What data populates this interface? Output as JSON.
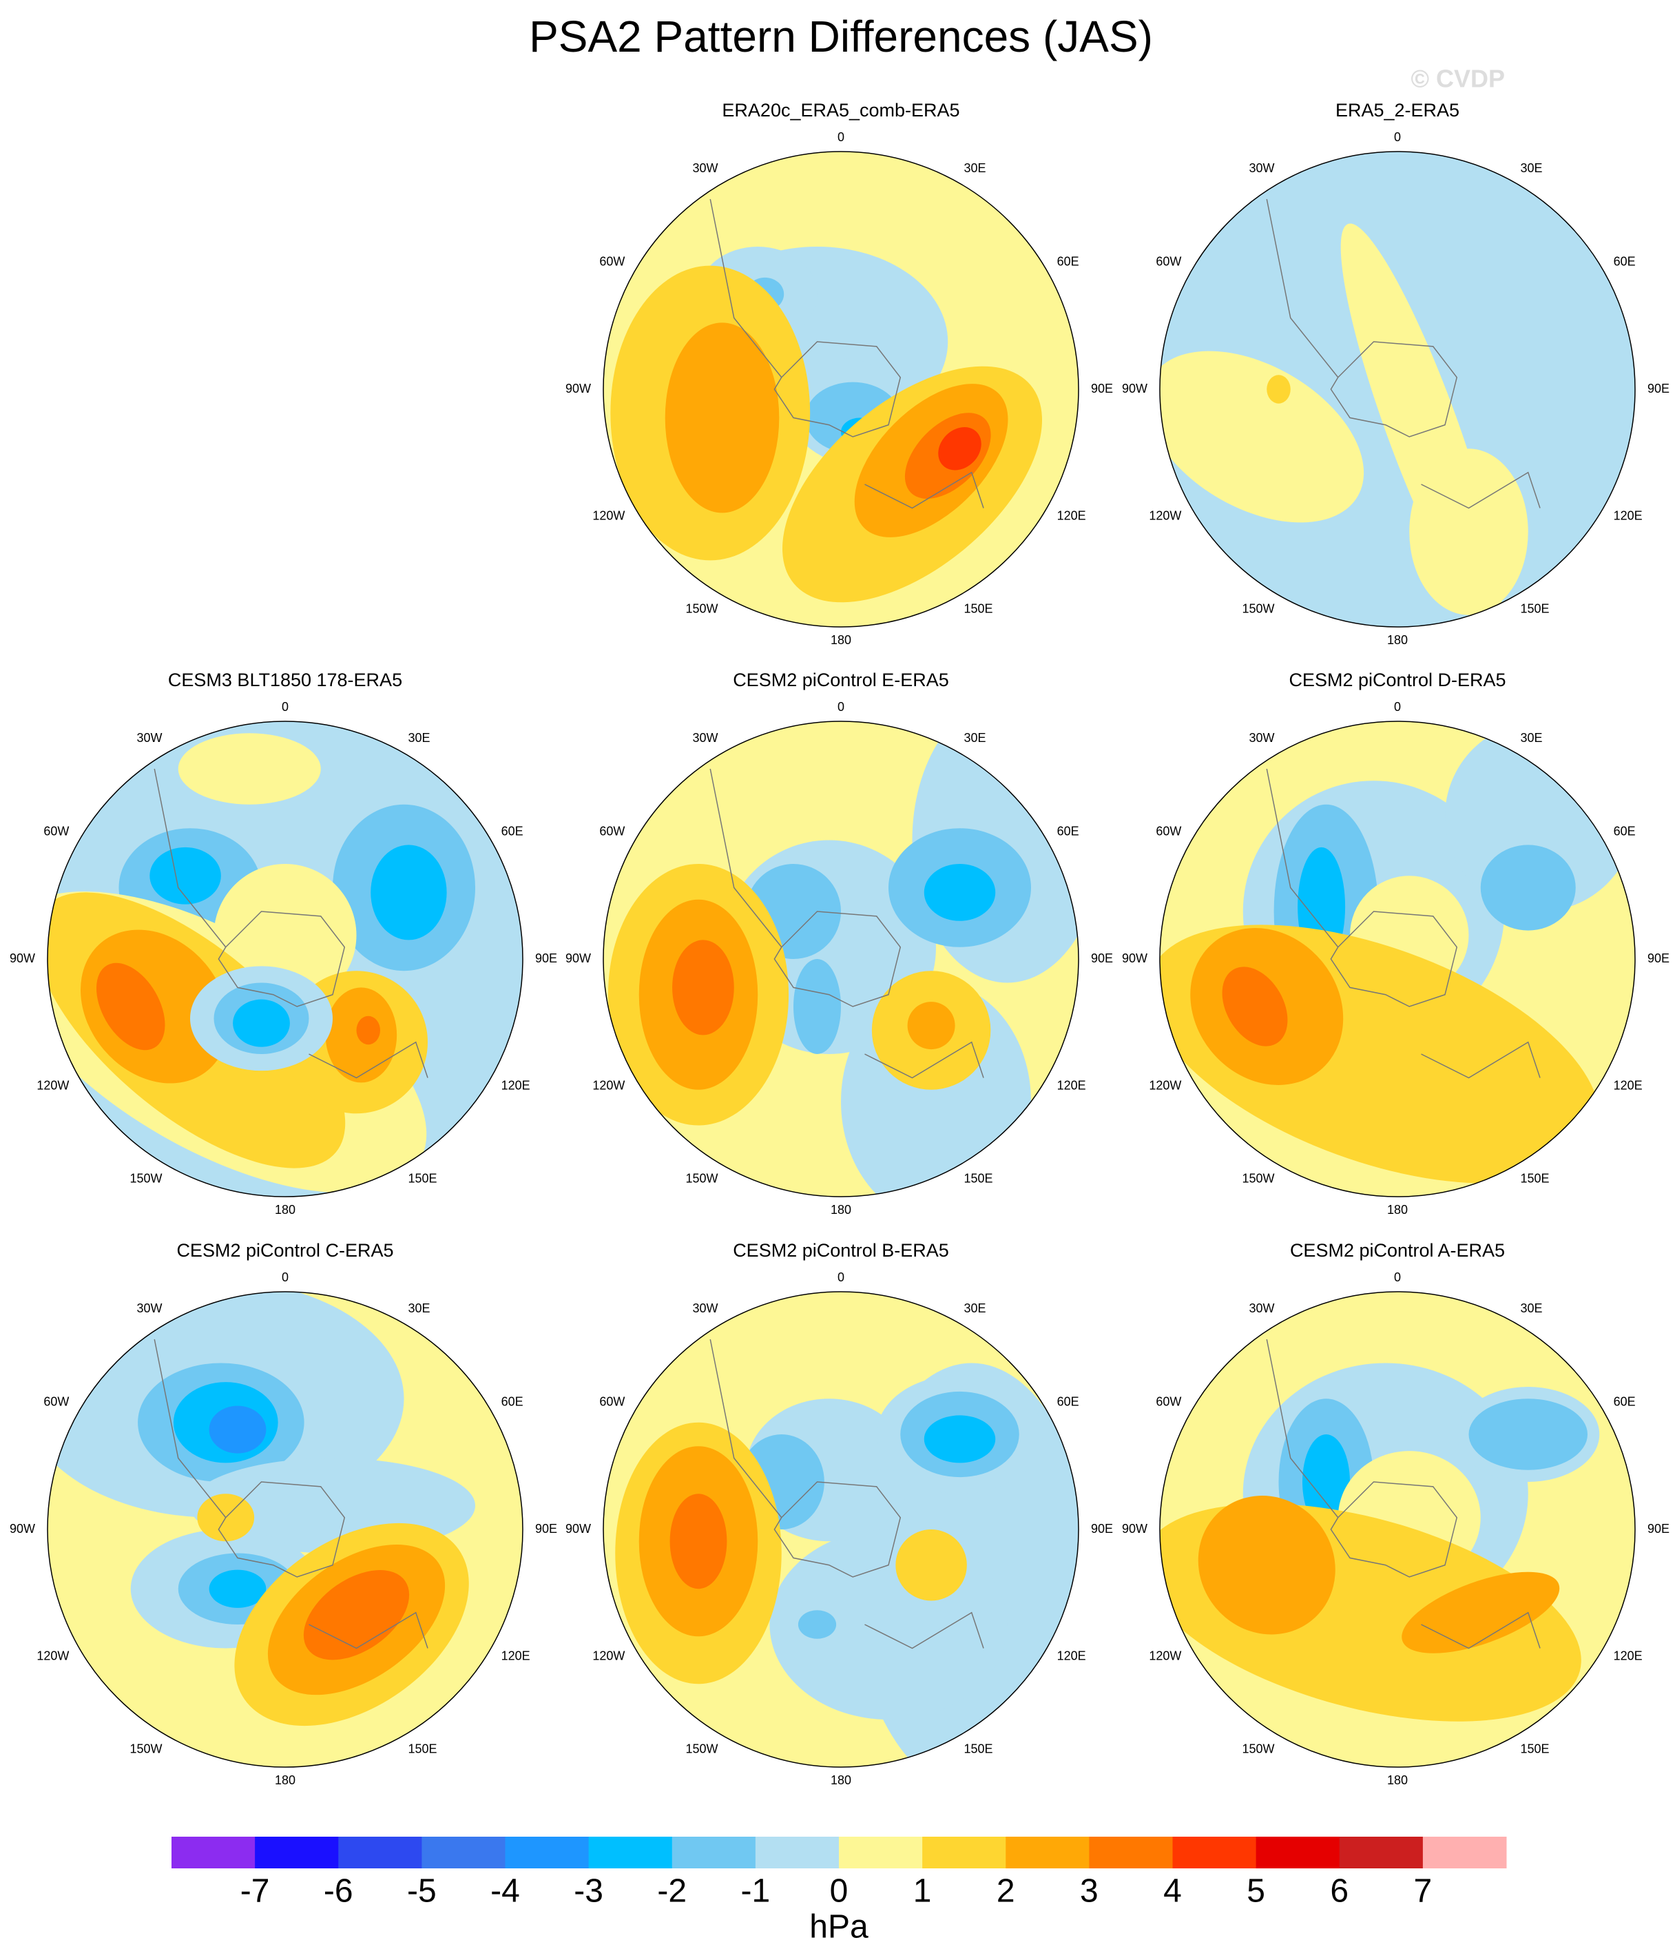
{
  "title": "PSA2 Pattern Differences (JAS)",
  "watermark": "© CVDP",
  "panels": [
    {
      "title": "ERA20c_ERA5_comb-ERA5"
    },
    {
      "title": "ERA5_2-ERA5"
    },
    {
      "title": "CESM3 BLT1850 178-ERA5"
    },
    {
      "title": "CESM2 piControl E-ERA5"
    },
    {
      "title": "CESM2 piControl D-ERA5"
    },
    {
      "title": "CESM2 piControl C-ERA5"
    },
    {
      "title": "CESM2 piControl B-ERA5"
    },
    {
      "title": "CESM2 piControl A-ERA5"
    }
  ],
  "lon_labels": [
    "0",
    "30E",
    "60E",
    "90E",
    "120E",
    "150E",
    "180",
    "150W",
    "120W",
    "90W",
    "60W",
    "30W"
  ],
  "colorbar": {
    "colors": [
      "#8c2cf0",
      "#1a10ff",
      "#2d49f0",
      "#3a78ee",
      "#1e96ff",
      "#00bfff",
      "#70c8f2",
      "#b3dff2",
      "#fdf795",
      "#fed631",
      "#ffa806",
      "#ff7800",
      "#ff3700",
      "#e50000",
      "#cc1f1f",
      "#ffb0b0"
    ],
    "levels": [
      -7,
      -6,
      -5,
      -4,
      -3,
      -2,
      -1,
      0,
      1,
      2,
      3,
      4,
      5,
      6,
      7
    ],
    "label": "hPa"
  }
}
